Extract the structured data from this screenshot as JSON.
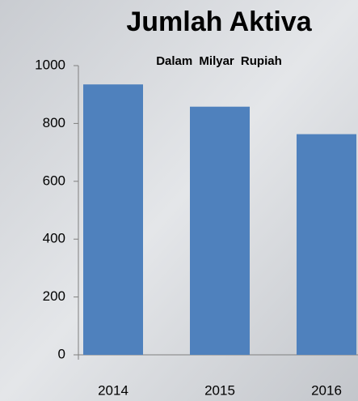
{
  "chart_data": {
    "type": "bar",
    "title": "Jumlah Aktiva",
    "subtitle": "Dalam Milyar Rupiah",
    "categories": [
      "2014",
      "2015",
      "2016"
    ],
    "values": [
      935,
      858,
      763
    ],
    "color": "#4f81bd",
    "ylim": [
      0,
      1000
    ],
    "yticks": [
      0,
      200,
      400,
      600,
      800,
      1000
    ]
  }
}
